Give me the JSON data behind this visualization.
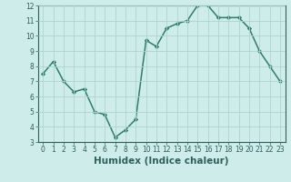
{
  "x": [
    0,
    1,
    2,
    3,
    4,
    5,
    6,
    7,
    8,
    9,
    10,
    11,
    12,
    13,
    14,
    15,
    16,
    17,
    18,
    19,
    20,
    21,
    22,
    23
  ],
  "y": [
    7.5,
    8.3,
    7.0,
    6.3,
    6.5,
    5.0,
    4.8,
    3.3,
    3.8,
    4.5,
    9.7,
    9.3,
    10.5,
    10.8,
    11.0,
    12.0,
    12.0,
    11.2,
    11.2,
    11.2,
    10.5,
    9.0,
    8.0,
    7.0
  ],
  "line_color": "#2e7d6e",
  "marker": "D",
  "marker_size": 2.2,
  "bg_color": "#ceecea",
  "grid_color": "#aed4d0",
  "xlabel": "Humidex (Indice chaleur)",
  "ylim": [
    3,
    12
  ],
  "xlim": [
    -0.5,
    23.5
  ],
  "yticks": [
    3,
    4,
    5,
    6,
    7,
    8,
    9,
    10,
    11,
    12
  ],
  "xticks": [
    0,
    1,
    2,
    3,
    4,
    5,
    6,
    7,
    8,
    9,
    10,
    11,
    12,
    13,
    14,
    15,
    16,
    17,
    18,
    19,
    20,
    21,
    22,
    23
  ],
  "tick_fontsize": 5.5,
  "xlabel_fontsize": 7.5,
  "axis_color": "#2e5f5f",
  "line_width": 1.1
}
